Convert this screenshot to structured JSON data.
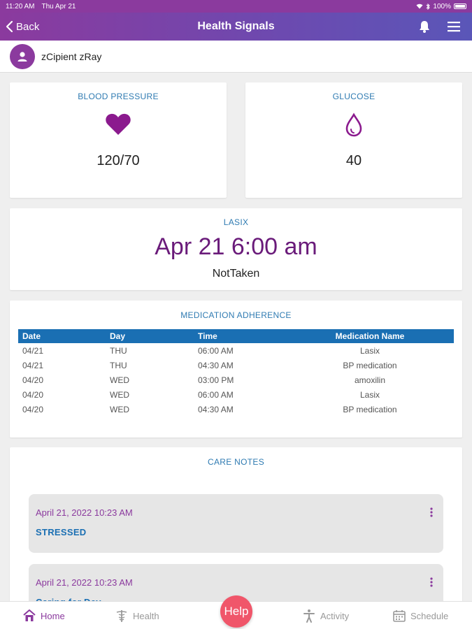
{
  "status_bar": {
    "time": "11:20 AM",
    "date": "Thu Apr 21",
    "battery": "100%"
  },
  "nav": {
    "back_label": "Back",
    "title": "Health Signals"
  },
  "user": {
    "name": "zCipient zRay"
  },
  "blood_pressure": {
    "label": "BLOOD PRESSURE",
    "value": "120/70"
  },
  "glucose": {
    "label": "GLUCOSE",
    "value": "40"
  },
  "medication": {
    "label": "LASIX",
    "time": "Apr 21 6:00 am",
    "status": "NotTaken"
  },
  "adherence": {
    "label": "MEDICATION ADHERENCE",
    "columns": [
      "Date",
      "Day",
      "Time",
      "Medication Name"
    ],
    "rows": [
      [
        "04/21",
        "THU",
        "06:00 AM",
        "Lasix"
      ],
      [
        "04/21",
        "THU",
        "04:30 AM",
        "BP medication"
      ],
      [
        "04/20",
        "WED",
        "03:00 PM",
        "amoxilin"
      ],
      [
        "04/20",
        "WED",
        "06:00 AM",
        "Lasix"
      ],
      [
        "04/20",
        "WED",
        "04:30 AM",
        "BP medication"
      ]
    ]
  },
  "care_notes": {
    "label": "CARE NOTES",
    "notes": [
      {
        "date": "April 21, 2022 10:23 AM",
        "title": "STRESSED"
      },
      {
        "date": "April 21, 2022 10:23 AM",
        "title": "Caring for Dev..."
      }
    ]
  },
  "tabs": {
    "home": "Home",
    "health": "Health",
    "help": "Help",
    "activity": "Activity",
    "schedule": "Schedule"
  },
  "colors": {
    "primary_purple": "#8b3a9e",
    "accent_blue": "#1a6fb3",
    "help_red": "#f0566a"
  }
}
